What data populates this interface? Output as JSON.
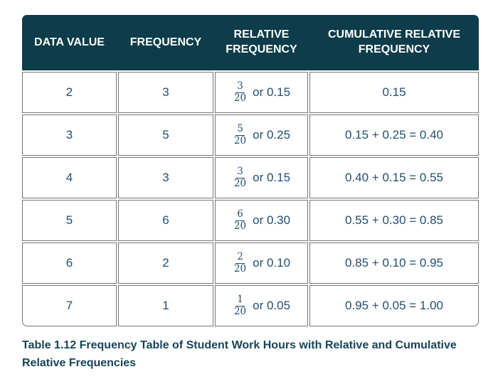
{
  "colors": {
    "page_background": "#ffffff",
    "header_background": "#0d3c4a",
    "header_text": "#ffffff",
    "cell_text": "#234f70",
    "cell_border": "#767676",
    "caption_text": "#17455a"
  },
  "table": {
    "headers": [
      "DATA VALUE",
      "FREQUENCY",
      "RELATIVE FREQUENCY",
      "CUMULATIVE RELATIVE FREQUENCY"
    ],
    "rows": [
      {
        "data_value": "2",
        "frequency": "3",
        "rel_num": "3",
        "rel_den": "20",
        "rel_text": "or 0.15",
        "cumulative": "0.15"
      },
      {
        "data_value": "3",
        "frequency": "5",
        "rel_num": "5",
        "rel_den": "20",
        "rel_text": "or 0.25",
        "cumulative": "0.15 + 0.25 = 0.40"
      },
      {
        "data_value": "4",
        "frequency": "3",
        "rel_num": "3",
        "rel_den": "20",
        "rel_text": "or 0.15",
        "cumulative": "0.40 + 0.15 = 0.55"
      },
      {
        "data_value": "5",
        "frequency": "6",
        "rel_num": "6",
        "rel_den": "20",
        "rel_text": "or 0.30",
        "cumulative": "0.55 + 0.30 = 0.85"
      },
      {
        "data_value": "6",
        "frequency": "2",
        "rel_num": "2",
        "rel_den": "20",
        "rel_text": "or 0.10",
        "cumulative": "0.85 + 0.10 = 0.95"
      },
      {
        "data_value": "7",
        "frequency": "1",
        "rel_num": "1",
        "rel_den": "20",
        "rel_text": "or 0.05",
        "cumulative": "0.95 + 0.05 = 1.00"
      }
    ]
  },
  "caption": "Table 1.12 Frequency Table of Student Work Hours with Relative and Cumulative Relative Frequencies"
}
